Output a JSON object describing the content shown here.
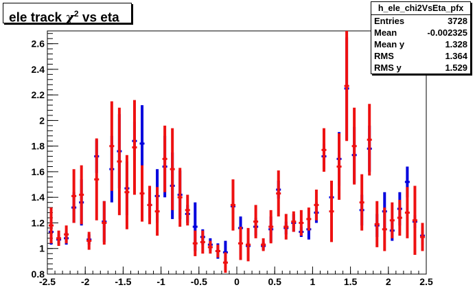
{
  "title": {
    "main": "ele track ",
    "chi": "χ",
    "sup": "2",
    "rest": " vs eta"
  },
  "stats": {
    "name": "h_ele_chi2VsEta_pfx",
    "rows": [
      {
        "label": "Entries",
        "value": "3728"
      },
      {
        "label": "Mean",
        "value": "-0.002325"
      },
      {
        "label": "Mean y",
        "value": "1.328"
      },
      {
        "label": "RMS",
        "value": "1.364"
      },
      {
        "label": "RMS y",
        "value": "1.529"
      }
    ]
  },
  "chart_data": {
    "type": "scatter",
    "xlim": [
      -2.5,
      2.5
    ],
    "ylim": [
      0.8,
      2.7
    ],
    "x_ticks": [
      "-2.5",
      "-2",
      "-1.5",
      "-1",
      "-0.5",
      "0",
      "0.5",
      "1",
      "1.5",
      "2",
      "2.5"
    ],
    "y_ticks": [
      "0.8",
      "1",
      "1.2",
      "1.4",
      "1.6",
      "1.8",
      "2",
      "2.2",
      "2.4",
      "2.6"
    ],
    "bin_width": 0.1,
    "colors": {
      "blue": "#0000dd",
      "red": "#ee1111"
    },
    "series": [
      {
        "color": "blue",
        "x": [
          -2.45,
          -2.35,
          -2.25,
          -2.15,
          -2.05,
          -1.95,
          -1.85,
          -1.75,
          -1.65,
          -1.55,
          -1.45,
          -1.35,
          -1.25,
          -1.15,
          -1.05,
          -0.95,
          -0.85,
          -0.75,
          -0.65,
          -0.55,
          -0.45,
          -0.35,
          -0.25,
          -0.15,
          -0.05,
          0.05,
          0.15,
          0.25,
          0.35,
          0.45,
          0.55,
          0.65,
          0.75,
          0.85,
          0.95,
          1.05,
          1.15,
          1.25,
          1.35,
          1.45,
          1.55,
          1.65,
          1.75,
          1.85,
          1.95,
          2.05,
          2.15,
          2.25,
          2.35,
          2.45
        ],
        "y": [
          1.13,
          1.07,
          1.08,
          1.32,
          1.36,
          1.07,
          1.72,
          1.21,
          1.62,
          1.76,
          1.47,
          1.84,
          1.82,
          1.34,
          1.41,
          1.64,
          1.49,
          1.42,
          1.27,
          1.17,
          1.09,
          1.03,
          0.98,
          0.97,
          1.33,
          1.16,
          1.02,
          1.17,
          1.02,
          1.15,
          1.46,
          1.16,
          1.2,
          1.13,
          1.15,
          1.28,
          1.72,
          1.4,
          1.7,
          2.25,
          1.73,
          1.3,
          1.78,
          1.18,
          1.29,
          1.14,
          1.31,
          1.52,
          1.21,
          1.1
        ],
        "err": [
          0.1,
          0.04,
          0.05,
          0.12,
          0.18,
          0.04,
          0.13,
          0.16,
          0.26,
          0.29,
          0.21,
          0.15,
          0.3,
          0.1,
          0.21,
          0.24,
          0.26,
          0.19,
          0.07,
          0.19,
          0.06,
          0.05,
          0.06,
          0.09,
          0.06,
          0.09,
          0.03,
          0.07,
          0.03,
          0.1,
          0.07,
          0.05,
          0.07,
          0.04,
          0.08,
          0.08,
          0.1,
          0.12,
          0.21,
          0.4,
          0.22,
          0.12,
          0.18,
          0.09,
          0.15,
          0.08,
          0.13,
          0.12,
          0.05,
          0.07
        ]
      },
      {
        "color": "red",
        "x": [
          -2.45,
          -2.35,
          -2.25,
          -2.15,
          -2.05,
          -1.95,
          -1.85,
          -1.75,
          -1.65,
          -1.55,
          -1.45,
          -1.35,
          -1.25,
          -1.15,
          -1.05,
          -0.95,
          -0.85,
          -0.75,
          -0.65,
          -0.55,
          -0.45,
          -0.35,
          -0.25,
          -0.15,
          -0.05,
          0.05,
          0.15,
          0.25,
          0.35,
          0.45,
          0.55,
          0.65,
          0.75,
          0.85,
          0.95,
          1.05,
          1.15,
          1.25,
          1.35,
          1.45,
          1.55,
          1.65,
          1.75,
          1.85,
          1.95,
          2.05,
          2.15,
          2.25,
          2.35,
          2.45
        ],
        "y": [
          1.18,
          1.08,
          1.11,
          1.41,
          1.42,
          1.06,
          1.54,
          1.2,
          1.8,
          1.68,
          1.44,
          1.79,
          1.43,
          1.34,
          1.29,
          1.7,
          1.62,
          1.4,
          1.3,
          1.04,
          1.05,
          1.01,
          0.98,
          0.89,
          1.34,
          1.04,
          1.03,
          1.21,
          1.03,
          1.17,
          1.43,
          1.17,
          1.21,
          1.2,
          1.23,
          1.34,
          1.77,
          1.29,
          1.64,
          2.27,
          1.8,
          1.36,
          1.85,
          1.19,
          1.15,
          1.22,
          1.24,
          1.28,
          1.22,
          1.09
        ],
        "err": [
          0.14,
          0.06,
          0.07,
          0.21,
          0.23,
          0.07,
          0.32,
          0.17,
          0.35,
          0.42,
          0.29,
          0.37,
          0.22,
          0.15,
          0.19,
          0.26,
          0.32,
          0.23,
          0.12,
          0.1,
          0.09,
          0.05,
          0.05,
          0.08,
          0.2,
          0.13,
          0.13,
          0.13,
          0.05,
          0.13,
          0.18,
          0.1,
          0.08,
          0.1,
          0.09,
          0.12,
          0.17,
          0.24,
          0.26,
          0.43,
          0.3,
          0.22,
          0.28,
          0.18,
          0.17,
          0.14,
          0.14,
          0.2,
          0.27,
          0.11
        ]
      }
    ]
  }
}
